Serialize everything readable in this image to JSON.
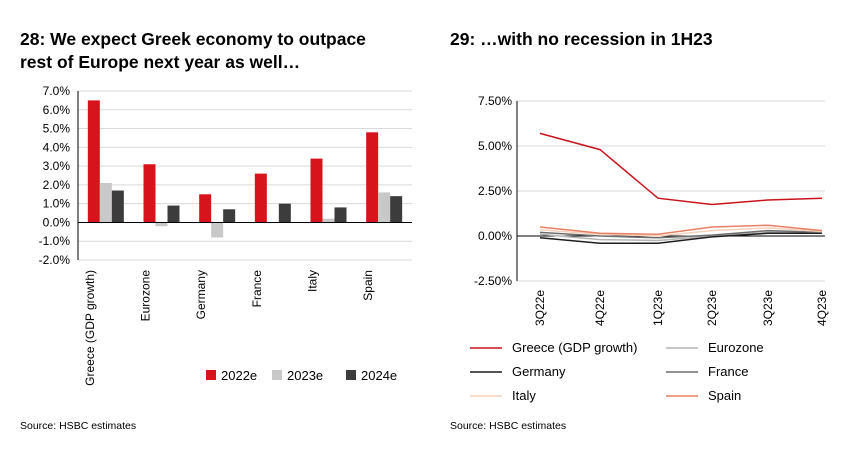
{
  "left": {
    "title_line1": "28: We expect Greek economy to outpace",
    "title_line2": "rest of Europe next year as well…",
    "source": "Source: HSBC estimates"
  },
  "right": {
    "title": "29: …with no recession in 1H23",
    "source": "Source: HSBC estimates"
  },
  "chart_data": [
    {
      "type": "bar",
      "title": "28: We expect Greek economy to outpace rest of Europe next year as well…",
      "categories": [
        "Greece (GDP growth)",
        "Eurozone",
        "Germany",
        "France",
        "Italy",
        "Spain"
      ],
      "series": [
        {
          "name": "2022e",
          "color": "#d7141c",
          "values": [
            6.5,
            3.1,
            1.5,
            2.6,
            3.4,
            4.8
          ]
        },
        {
          "name": "2023e",
          "color": "#c8c8c8",
          "values": [
            2.1,
            -0.2,
            -0.8,
            0.0,
            0.2,
            1.6
          ]
        },
        {
          "name": "2024e",
          "color": "#3c3c3c",
          "values": [
            1.7,
            0.9,
            0.7,
            1.0,
            0.8,
            1.4
          ]
        }
      ],
      "yticks": [
        "7.0%",
        "6.0%",
        "5.0%",
        "4.0%",
        "3.0%",
        "2.0%",
        "1.0%",
        "0.0%",
        "-1.0%",
        "-2.0%"
      ],
      "ylim": [
        -2,
        7
      ],
      "grid": true,
      "legend": "bottom"
    },
    {
      "type": "line",
      "title": "29: …with no recession in 1H23",
      "categories": [
        "3Q22e",
        "4Q22e",
        "1Q23e",
        "2Q23e",
        "3Q23e",
        "4Q23e"
      ],
      "series": [
        {
          "name": "Greece (GDP growth)",
          "color": "#c8141c",
          "values": [
            5.7,
            4.8,
            2.1,
            1.75,
            2.0,
            2.1
          ]
        },
        {
          "name": "Eurozone",
          "color": "#b4b4b4",
          "values": [
            0.1,
            -0.2,
            -0.25,
            0.0,
            0.2,
            0.2
          ]
        },
        {
          "name": "Germany",
          "color": "#1e1e1e",
          "values": [
            -0.1,
            -0.4,
            -0.4,
            -0.05,
            0.15,
            0.15
          ]
        },
        {
          "name": "France",
          "color": "#6e6e6e",
          "values": [
            0.2,
            0.0,
            -0.1,
            0.05,
            0.3,
            0.2
          ]
        },
        {
          "name": "Italy",
          "color": "#f5d2bc",
          "values": [
            0.35,
            0.1,
            0.0,
            0.3,
            0.45,
            0.25
          ]
        },
        {
          "name": "Spain",
          "color": "#e88064",
          "values": [
            0.5,
            0.15,
            0.1,
            0.5,
            0.6,
            0.3
          ]
        }
      ],
      "yticks": [
        "7.50%",
        "5.00%",
        "2.50%",
        "0.00%",
        "-2.50%"
      ],
      "ylim": [
        -2.5,
        7.5
      ],
      "grid": true,
      "legend": "bottom"
    }
  ]
}
